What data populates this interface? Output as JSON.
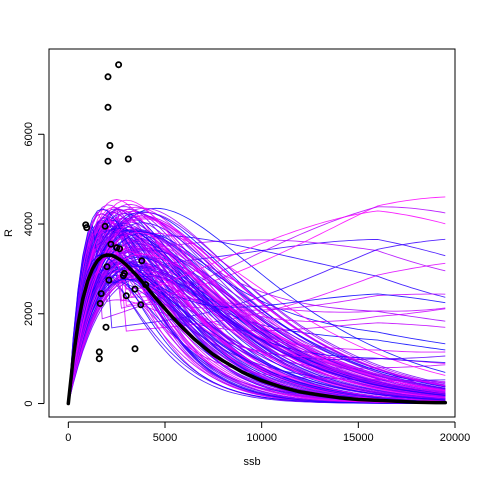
{
  "chart_data": {
    "type": "line",
    "xlabel": "ssb",
    "ylabel": "R",
    "xlim": [
      -1000,
      20000
    ],
    "ylim": [
      -300,
      7900
    ],
    "x_ticks": [
      0,
      5000,
      10000,
      15000,
      20000
    ],
    "y_ticks": [
      0,
      2000,
      4000,
      6000
    ],
    "x_tick_labels": [
      "0",
      "5000",
      "10000",
      "15000",
      "20000"
    ],
    "y_tick_labels": [
      "0",
      "2000",
      "4000",
      "6000"
    ],
    "grid": false,
    "legend": "none",
    "colors": {
      "fit": "#000000",
      "observed": "#000000",
      "ensemble_low": "#0000ff",
      "ensemble_high": "#ff00ff"
    },
    "series": [
      {
        "type": "line",
        "role": "fitted",
        "x": [
          0,
          250,
          500,
          750,
          1000,
          1250,
          1500,
          1750,
          2000,
          2250,
          2500,
          2750,
          3000,
          3500,
          4000,
          4500,
          5000,
          5500,
          6000,
          6500,
          7000,
          7500,
          8000,
          9000,
          10000,
          11000,
          12000,
          13000,
          14000,
          15000,
          16000,
          17000,
          18000,
          19000,
          19500
        ],
        "y": [
          0,
          1010,
          1770,
          2330,
          2730,
          3000,
          3180,
          3280,
          3310,
          3300,
          3250,
          3180,
          3090,
          2870,
          2620,
          2360,
          2110,
          1870,
          1650,
          1440,
          1260,
          1090,
          950,
          700,
          510,
          370,
          260,
          190,
          130,
          90,
          70,
          50,
          30,
          20,
          20
        ]
      },
      {
        "type": "scatter",
        "role": "observed",
        "x": [
          2600,
          2050,
          2050,
          2150,
          3100,
          2050,
          900,
          950,
          1900,
          2500,
          2650,
          2200,
          3800,
          2000,
          2900,
          2850,
          4000,
          2100,
          3450,
          1700,
          3000,
          3750,
          1650,
          1950,
          3450,
          1600,
          1600
        ],
        "y": [
          7550,
          7280,
          6600,
          5750,
          5450,
          5400,
          3980,
          3920,
          3950,
          3470,
          3450,
          3550,
          3180,
          3050,
          2900,
          2850,
          2650,
          2750,
          2550,
          2450,
          2400,
          2200,
          2230,
          1700,
          1220,
          1150,
          1000
        ]
      }
    ]
  }
}
